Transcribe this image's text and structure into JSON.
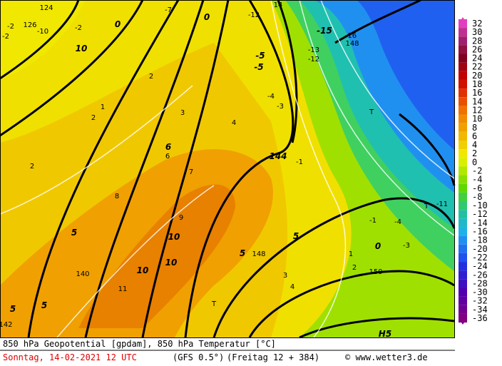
{
  "map": {
    "labels": [
      "124",
      "126",
      "-10",
      "-2",
      "0",
      "-7",
      "0",
      "-12",
      "14",
      "-15",
      "-16",
      "148",
      "-13",
      "-12",
      "10",
      "-5",
      "-5",
      "-4",
      "-3",
      "T",
      "144",
      "2",
      "2",
      "1",
      "2",
      "3",
      "4",
      "5",
      "6",
      "7",
      "8",
      "9",
      "10",
      "11",
      "140",
      "142",
      "T",
      "148",
      "150",
      "T",
      "-11",
      "-1",
      "0",
      "-3",
      "-4",
      "1",
      "2",
      "3",
      "4",
      "5",
      "5",
      "10",
      "10",
      "6",
      "-1",
      "-2",
      "-2",
      "5",
      "5",
      "H5"
    ],
    "bold": [
      false,
      false,
      false,
      false,
      true,
      false,
      true,
      false,
      false,
      true,
      false,
      false,
      false,
      false,
      true,
      true,
      true,
      false,
      false,
      false,
      true,
      false,
      false,
      false,
      false,
      false,
      false,
      true,
      true,
      false,
      false,
      false,
      true,
      false,
      false,
      false,
      false,
      false,
      false,
      false,
      false,
      false,
      true,
      false,
      false,
      false,
      false,
      false,
      false,
      true,
      true,
      true,
      true,
      false,
      false,
      false,
      false,
      true,
      true,
      true
    ]
  },
  "color_scale": {
    "values": [
      32,
      30,
      28,
      26,
      24,
      22,
      20,
      18,
      16,
      14,
      12,
      10,
      8,
      6,
      4,
      2,
      0,
      -2,
      -4,
      -6,
      -8,
      -10,
      -12,
      -14,
      -16,
      -18,
      -20,
      -22,
      -24,
      -26,
      -28,
      -30,
      -32,
      -34,
      -36
    ],
    "colors": [
      "#e040c0",
      "#c03090",
      "#a02070",
      "#901040",
      "#800020",
      "#a00010",
      "#c00000",
      "#d01000",
      "#e03000",
      "#e85000",
      "#f07000",
      "#f08c00",
      "#f0a000",
      "#f0b800",
      "#f0d000",
      "#f0e800",
      "#d8f000",
      "#b0e800",
      "#88e000",
      "#60d800",
      "#40d040",
      "#30c870",
      "#20c0a0",
      "#20b8c8",
      "#20b0e8",
      "#2090f0",
      "#2070f0",
      "#2050f0",
      "#2030e0",
      "#3020d0",
      "#4010c0",
      "#5000b0",
      "#6000a0",
      "#700090",
      "#800080"
    ]
  },
  "footer": {
    "line1": "850 hPa Geopotential [gpdam], 850 hPa Temperatur [°C]",
    "date": "Sonntag, 14-02-2021  12 UTC",
    "model": "(GFS 0.5°)",
    "run": "(Freitag 12 + 384)",
    "credit": "© www.wetter3.de"
  }
}
